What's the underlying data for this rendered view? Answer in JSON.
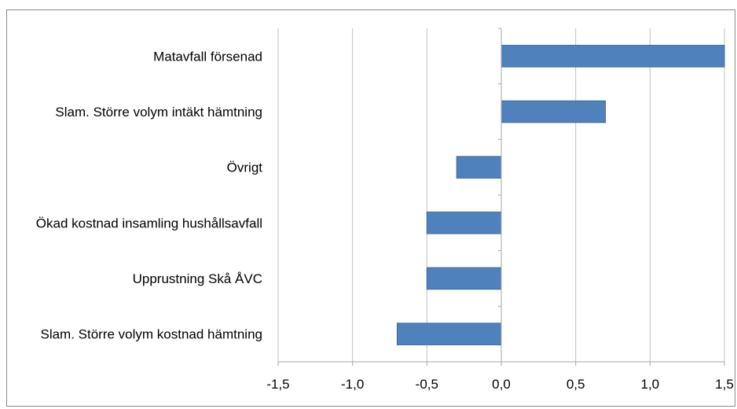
{
  "chart_data": {
    "type": "bar",
    "orientation": "horizontal",
    "categories": [
      "Matavfall försenad",
      "Slam. Större volym intäkt hämtning",
      "Övrigt",
      "Ökad kostnad insamling hushållsavfall",
      "Upprustning Skå ÅVC",
      "Slam. Större volym kostnad hämtning"
    ],
    "values": [
      1.5,
      0.7,
      -0.3,
      -0.5,
      -0.5,
      -0.7
    ],
    "xlim": [
      -1.5,
      1.5
    ],
    "x_ticks": [
      "-1,5",
      "-1,0",
      "-0,5",
      "0,0",
      "0,5",
      "1,0",
      "1,5"
    ],
    "tick_values": [
      -1.5,
      -1.0,
      -0.5,
      0.0,
      0.5,
      1.0,
      1.5
    ],
    "title": "",
    "xlabel": "",
    "ylabel": "",
    "grid": "vertical",
    "legend": "none",
    "bar_color": "#4f81bd",
    "bar_edge_color": "#3c6aa0",
    "grid_color": "#c0c0c0"
  }
}
